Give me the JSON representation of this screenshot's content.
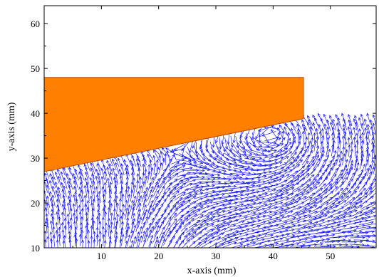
{
  "chart_data": {
    "type": "scatter",
    "subtype": "vector-field",
    "title": "",
    "xlabel": "x-axis (mm)",
    "ylabel": "y-axis (mm)",
    "xlim": [
      0,
      58
    ],
    "ylim": [
      10,
      64
    ],
    "xticks": [
      10,
      20,
      30,
      40,
      50
    ],
    "yticks": [
      10,
      20,
      30,
      40,
      50,
      60
    ],
    "grid": false,
    "legend": "none",
    "colors": {
      "body_fill": "#ff7f00",
      "body_edge": "#b84a00",
      "vectors": "#1a1aff",
      "axis": "#000000"
    },
    "body_polygon": {
      "x": [
        0,
        45.3,
        45.3,
        0
      ],
      "y": [
        27.0,
        38.8,
        48.0,
        48.0
      ]
    },
    "vector_field": {
      "x_range": [
        0.5,
        57.5
      ],
      "y_min": 10.5,
      "y_max": 39.0,
      "spacing_mm": 1.0,
      "typical_direction": "upward-left near wedge, downward-right at bottom right",
      "vortex_center": {
        "x": 40.0,
        "y": 35.0
      }
    }
  }
}
